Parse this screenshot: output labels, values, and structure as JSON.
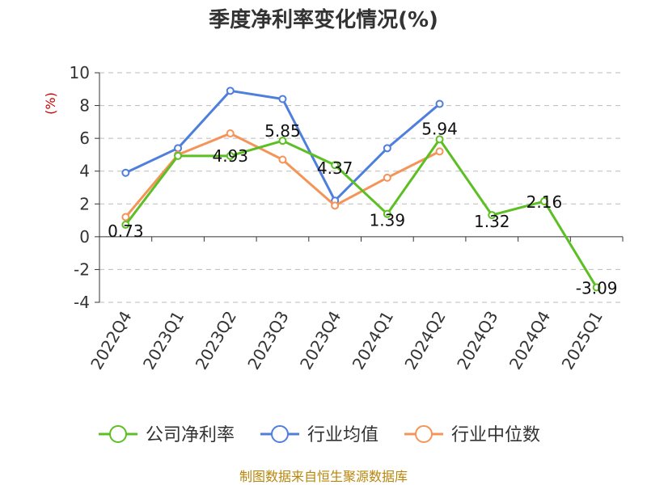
{
  "chart_data": {
    "type": "line",
    "title": "季度净利率变化情况(%)",
    "ylabel": "(%)",
    "xlabel": "",
    "categories": [
      "2022Q4",
      "2023Q1",
      "2023Q2",
      "2023Q3",
      "2023Q4",
      "2024Q1",
      "2024Q2",
      "2024Q3",
      "2024Q4",
      "2025Q1"
    ],
    "ylim": [
      -4,
      10
    ],
    "yticks": [
      -4,
      -2,
      0,
      2,
      4,
      6,
      8,
      10
    ],
    "grid": true,
    "legend_position": "bottom",
    "series": [
      {
        "name": "公司净利率",
        "color": "#5cbf24",
        "values": [
          0.73,
          4.93,
          4.93,
          5.85,
          4.37,
          1.39,
          5.94,
          1.32,
          2.16,
          -3.09
        ],
        "labels": [
          "0.73",
          null,
          "4.93",
          "5.85",
          "4.37",
          "1.39",
          "5.94",
          "1.32",
          "2.16",
          "-3.09"
        ]
      },
      {
        "name": "行业均值",
        "color": "#4f7fdc",
        "values": [
          3.9,
          5.4,
          8.9,
          8.4,
          2.2,
          5.4,
          8.1,
          null,
          null,
          null
        ]
      },
      {
        "name": "行业中位数",
        "color": "#f59459",
        "values": [
          1.2,
          5.0,
          6.3,
          4.7,
          1.9,
          3.6,
          5.2,
          null,
          null,
          null
        ]
      }
    ]
  },
  "source": "制图数据来自恒生聚源数据库"
}
